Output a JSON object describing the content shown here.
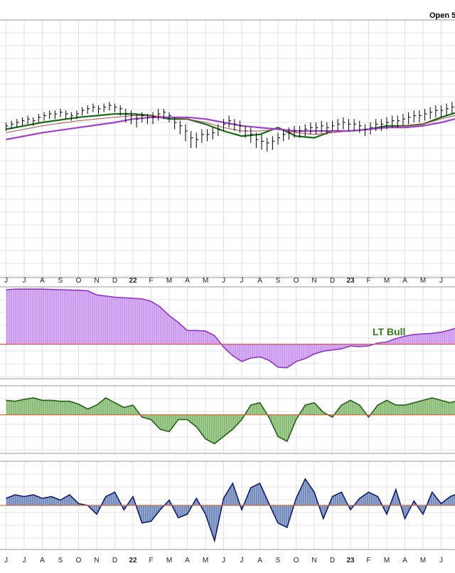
{
  "header": {
    "open_label": "Open 5"
  },
  "chart_data": [
    {
      "type": "line",
      "panel": "price",
      "x_months": [
        "J",
        "J",
        "A",
        "S",
        "O",
        "N",
        "D",
        "22",
        "F",
        "M",
        "A",
        "M",
        "J",
        "J",
        "A",
        "S",
        "O",
        "N",
        "D",
        "23",
        "F",
        "M",
        "A",
        "M",
        "J"
      ],
      "x_range": [
        0,
        25.5
      ],
      "y_range": [
        0,
        100
      ],
      "grid": true,
      "series": [
        {
          "role": "price-bars",
          "color": "#000000",
          "x": [
            0,
            0.3,
            0.6,
            0.9,
            1.2,
            1.5,
            1.8,
            2.1,
            2.4,
            2.7,
            3.0,
            3.3,
            3.6,
            3.9,
            4.2,
            4.5,
            4.8,
            5.1,
            5.4,
            5.7,
            6.0,
            6.3,
            6.6,
            6.9,
            7.2,
            7.5,
            7.8,
            8.1,
            8.4,
            8.7,
            9.0,
            9.3,
            9.6,
            9.9,
            10.2,
            10.5,
            10.8,
            11.1,
            11.4,
            11.7,
            12.0,
            12.3,
            12.6,
            12.9,
            13.2,
            13.5,
            13.8,
            14.1,
            14.4,
            14.7,
            15.0,
            15.3,
            15.6,
            15.9,
            16.2,
            16.5,
            16.8,
            17.1,
            17.4,
            17.7,
            18.0,
            18.3,
            18.6,
            18.9,
            19.2,
            19.5,
            19.8,
            20.1,
            20.4,
            20.7,
            21.0,
            21.3,
            21.6,
            21.9,
            22.2,
            22.5,
            22.8,
            23.1,
            23.4,
            23.7,
            24.0,
            24.3,
            24.6,
            24.9,
            25.2
          ],
          "close": [
            43,
            44,
            45,
            46,
            47,
            46,
            48,
            49,
            50,
            50,
            51,
            50,
            49,
            50,
            52,
            53,
            54,
            53,
            54,
            55,
            54,
            53,
            50,
            49,
            47,
            49,
            48,
            48,
            50,
            51,
            49,
            45,
            43,
            40,
            36,
            35,
            38,
            38,
            39,
            41,
            44,
            46,
            44,
            43,
            40,
            38,
            35,
            34,
            33,
            34,
            36,
            38,
            39,
            40,
            40,
            41,
            42,
            42,
            43,
            42,
            43,
            44,
            45,
            44,
            44,
            43,
            41,
            42,
            44,
            44,
            45,
            46,
            46,
            47,
            48,
            49,
            49,
            50,
            51,
            52,
            52,
            53,
            54,
            55,
            56
          ],
          "high": [
            45,
            46,
            47,
            48,
            49,
            48,
            50,
            51,
            52,
            52,
            53,
            52,
            51,
            52,
            54,
            55,
            56,
            55,
            56,
            57,
            56,
            55,
            53,
            52,
            50,
            51,
            50,
            51,
            53,
            53,
            51,
            48,
            46,
            44,
            40,
            39,
            41,
            41,
            42,
            44,
            47,
            49,
            47,
            46,
            43,
            42,
            39,
            38,
            36,
            37,
            39,
            41,
            42,
            43,
            43,
            44,
            45,
            45,
            46,
            45,
            46,
            47,
            48,
            47,
            47,
            46,
            44,
            45,
            47,
            47,
            48,
            49,
            49,
            50,
            51,
            52,
            52,
            53,
            54,
            55,
            55,
            56,
            57,
            58,
            59
          ],
          "low": [
            40,
            41,
            42,
            43,
            44,
            43,
            45,
            46,
            47,
            47,
            48,
            47,
            46,
            47,
            49,
            50,
            51,
            50,
            51,
            52,
            51,
            49,
            45,
            44,
            42,
            45,
            44,
            44,
            46,
            47,
            45,
            41,
            38,
            34,
            30,
            30,
            33,
            34,
            35,
            37,
            40,
            42,
            40,
            39,
            36,
            33,
            30,
            29,
            28,
            29,
            32,
            34,
            35,
            36,
            36,
            37,
            38,
            38,
            39,
            38,
            40,
            40,
            41,
            40,
            40,
            39,
            37,
            38,
            40,
            40,
            41,
            42,
            42,
            43,
            44,
            45,
            45,
            46,
            47,
            48,
            48,
            49,
            50,
            51,
            52
          ]
        },
        {
          "role": "ma-short",
          "color": "#1a6b1a",
          "x": [
            0,
            2,
            4,
            6,
            7,
            8,
            9,
            10,
            11,
            12,
            13,
            14,
            15,
            16,
            17,
            18,
            19,
            20,
            21,
            22,
            23,
            24,
            25.5
          ],
          "y": [
            41,
            45,
            48,
            50,
            50,
            49,
            47,
            47,
            44,
            40,
            37,
            38,
            42,
            37,
            36,
            40,
            40,
            41,
            43,
            43,
            44,
            48,
            53
          ]
        },
        {
          "role": "ma-mid",
          "color": "#b84a4a",
          "x": [
            0,
            2,
            4,
            6,
            7,
            8,
            9,
            10,
            11,
            12,
            13,
            14,
            15,
            16,
            17,
            18,
            19,
            20,
            21,
            22,
            23,
            24,
            25.5
          ],
          "y": [
            39,
            43,
            46,
            48,
            49,
            49,
            48,
            47,
            45,
            42,
            40,
            40,
            41,
            39,
            38,
            39,
            40,
            41,
            42,
            43,
            44,
            47,
            51
          ]
        },
        {
          "role": "ma-long",
          "color": "#a040d0",
          "x": [
            0,
            2,
            4,
            6,
            7,
            8,
            9,
            10,
            11,
            12,
            13,
            14,
            15,
            16,
            17,
            18,
            19,
            20,
            21,
            22,
            23,
            24,
            25.5
          ],
          "y": [
            35,
            39,
            42,
            45,
            47,
            48,
            48,
            48,
            47,
            45,
            43,
            42,
            41,
            40,
            40,
            40,
            40,
            41,
            42,
            42,
            43,
            45,
            49
          ]
        }
      ]
    },
    {
      "type": "area",
      "panel": "lt-trend",
      "annotation": "LT Bull",
      "colors": {
        "fill": "#c993f0",
        "line": "#8e35cc",
        "zero": "#e05252"
      },
      "x": [
        0,
        0.5,
        1,
        2,
        3,
        4,
        4.5,
        5,
        6,
        7,
        7.5,
        8,
        8.5,
        9,
        9.5,
        10,
        10.5,
        11,
        11.5,
        12,
        12.5,
        13,
        13.5,
        14,
        14.5,
        15,
        15.5,
        16,
        16.5,
        17,
        17.5,
        18,
        18.5,
        19,
        19.5,
        20,
        20.5,
        21,
        21.5,
        22,
        22.5,
        23,
        23.5,
        24,
        24.5,
        25,
        25.5
      ],
      "y": [
        95,
        96,
        96,
        96,
        95,
        94,
        93,
        86,
        82,
        80,
        79,
        75,
        65,
        50,
        38,
        24,
        24,
        23,
        15,
        -5,
        -20,
        -30,
        -24,
        -22,
        -28,
        -40,
        -41,
        -30,
        -25,
        -17,
        -12,
        -10,
        -8,
        -3,
        -4,
        -3,
        2,
        4,
        10,
        14,
        17,
        18,
        19,
        21,
        25,
        30,
        36
      ],
      "ylim": [
        -60,
        100
      ]
    },
    {
      "type": "area",
      "panel": "mt-trend",
      "colors": {
        "fill": "#82b86e",
        "line": "#265f17",
        "zero": "#d06a3a"
      },
      "x": [
        0,
        0.5,
        1,
        1.5,
        2,
        2.5,
        3,
        3.5,
        4,
        4.5,
        5,
        5.5,
        6,
        6.5,
        7,
        7.5,
        8,
        8.5,
        9,
        9.5,
        10,
        10.5,
        11,
        11.5,
        12,
        12.5,
        13,
        13.5,
        14,
        14.5,
        15,
        15.5,
        16,
        16.5,
        17,
        17.5,
        18,
        18.5,
        19,
        19.5,
        20,
        20.5,
        21,
        21.5,
        22,
        22.5,
        23,
        23.5,
        24,
        24.5,
        25,
        25.5
      ],
      "y": [
        30,
        28,
        32,
        35,
        30,
        30,
        28,
        28,
        22,
        12,
        20,
        35,
        25,
        15,
        20,
        -5,
        -10,
        -30,
        -35,
        -10,
        -10,
        -25,
        -50,
        -60,
        -45,
        -30,
        -10,
        20,
        25,
        -5,
        -45,
        -55,
        -10,
        20,
        25,
        5,
        -5,
        20,
        30,
        20,
        -5,
        20,
        30,
        20,
        20,
        25,
        30,
        35,
        30,
        25,
        30,
        35
      ],
      "ylim": [
        -80,
        60
      ]
    },
    {
      "type": "area",
      "panel": "st-trend",
      "colors": {
        "fill": "#6d86b8",
        "line": "#141c6e",
        "zero": "#d46a40"
      },
      "x": [
        0,
        0.5,
        1,
        1.5,
        2,
        2.5,
        3,
        3.5,
        4,
        4.5,
        5,
        5.5,
        6,
        6.5,
        7,
        7.5,
        8,
        8.5,
        9,
        9.5,
        10,
        10.5,
        11,
        11.5,
        12,
        12.5,
        13,
        13.5,
        14,
        14.5,
        15,
        15.5,
        16,
        16.5,
        17,
        17.5,
        18,
        18.5,
        19,
        19.5,
        20,
        20.5,
        21,
        21.5,
        22,
        22.5,
        23,
        23.5,
        24,
        24.5,
        25,
        25.5
      ],
      "y": [
        8,
        12,
        10,
        12,
        8,
        10,
        6,
        12,
        2,
        0,
        -10,
        10,
        15,
        -5,
        10,
        -20,
        -18,
        -5,
        6,
        -14,
        -10,
        8,
        -10,
        -40,
        8,
        25,
        -5,
        20,
        25,
        2,
        -20,
        -25,
        8,
        30,
        15,
        -15,
        10,
        15,
        -5,
        8,
        15,
        10,
        -10,
        18,
        -15,
        5,
        -10,
        15,
        2,
        10,
        14,
        15
      ],
      "ylim": [
        -50,
        50
      ]
    }
  ]
}
